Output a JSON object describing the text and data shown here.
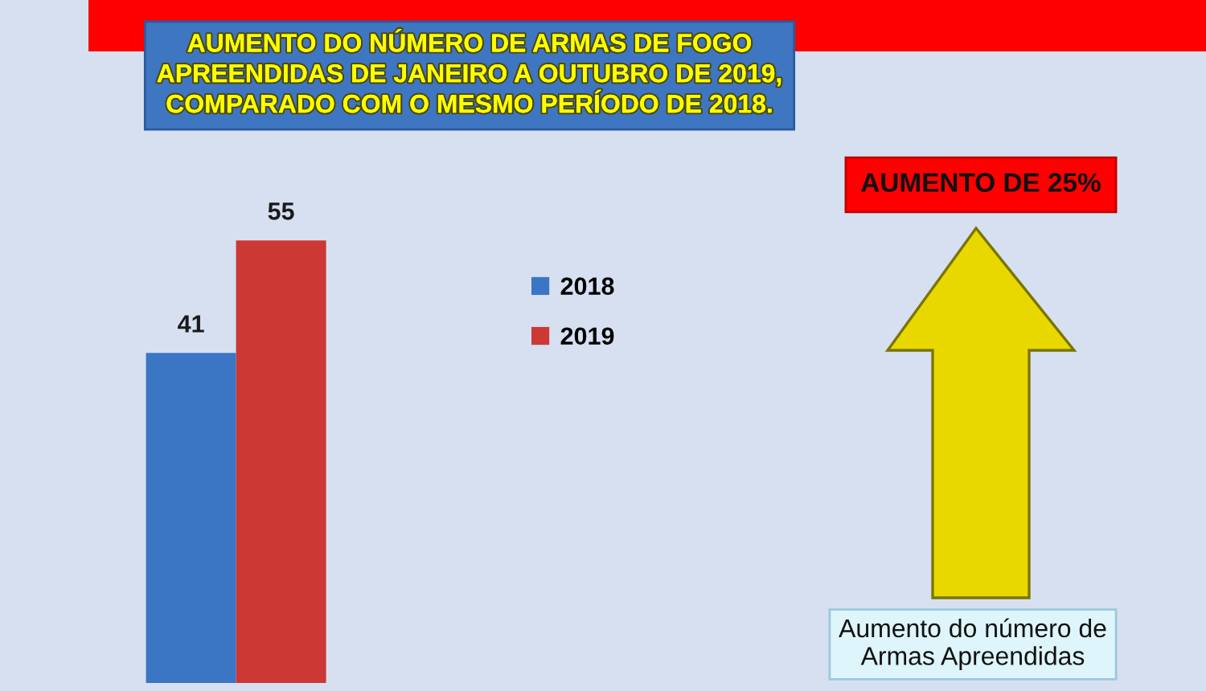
{
  "chart_data": {
    "type": "bar",
    "title": "AUMENTO DO NÚMERO DE ARMAS DE FOGO\nAPREENDIDAS DE JANEIRO A OUTUBRO DE 2019,\nCOMPARADO COM O MESMO PERÍODO DE 2018.",
    "categories": [
      null
    ],
    "series": [
      {
        "name": "2018",
        "color": "#3a76c4",
        "values": [
          41
        ]
      },
      {
        "name": "2019",
        "color": "#cc3834",
        "values": [
          55
        ]
      }
    ],
    "data_labels": true,
    "legend": "top right",
    "tick_labels": false,
    "annotations": [
      "AUMENTO DE 25%",
      "Aumento do número de\nArmas Apreendidas"
    ]
  }
}
